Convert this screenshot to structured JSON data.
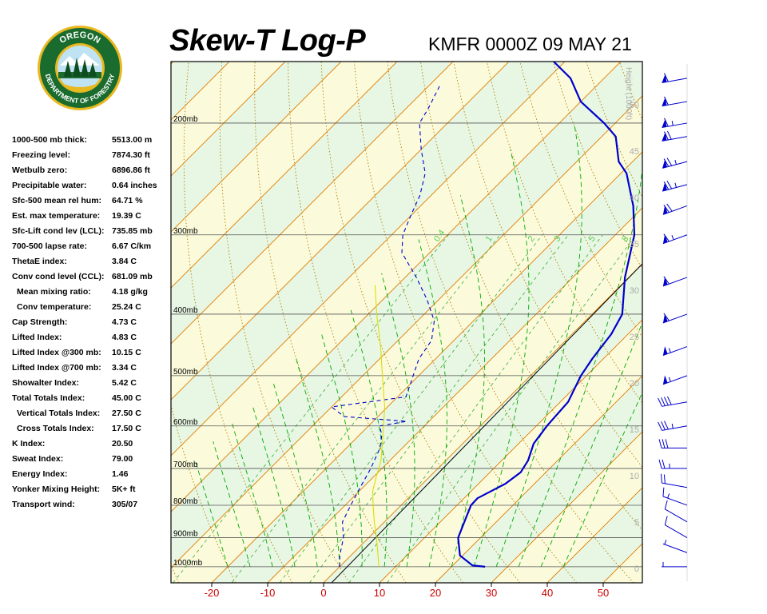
{
  "header": {
    "title": "Skew-T Log-P",
    "station": "KMFR 0000Z 09 MAY 21"
  },
  "logo": {
    "top_text": "OREGON",
    "bottom_text": "DEPARTMENT OF FORESTRY",
    "colors": {
      "ring": "#1a6b2e",
      "gold": "#e8b820",
      "sky": "#bfe3f2"
    }
  },
  "stats": [
    {
      "label": "1000-500 mb thick:",
      "value": "5513.00 m",
      "indent": false
    },
    {
      "label": "Freezing level:",
      "value": "7874.30 ft",
      "indent": false
    },
    {
      "label": "Wetbulb zero:",
      "value": "6896.86 ft",
      "indent": false
    },
    {
      "label": "Precipitable water:",
      "value": "0.64 inches",
      "indent": false
    },
    {
      "label": "Sfc-500 mean rel hum:",
      "value": "64.71 %",
      "indent": false
    },
    {
      "label": "Est. max temperature:",
      "value": "19.39 C",
      "indent": false
    },
    {
      "label": "Sfc-Lift cond lev (LCL):",
      "value": "735.85 mb",
      "indent": false
    },
    {
      "label": "700-500 lapse rate:",
      "value": "6.67 C/km",
      "indent": false
    },
    {
      "label": "ThetaE index:",
      "value": "3.84 C",
      "indent": false
    },
    {
      "label": "Conv cond level (CCL):",
      "value": "681.09 mb",
      "indent": false
    },
    {
      "label": "Mean mixing ratio:",
      "value": "4.18 g/kg",
      "indent": true
    },
    {
      "label": "Conv temperature:",
      "value": "25.24 C",
      "indent": true
    },
    {
      "label": "Cap Strength:",
      "value": "4.73 C",
      "indent": false
    },
    {
      "label": "Lifted Index:",
      "value": "4.83 C",
      "indent": false
    },
    {
      "label": "Lifted Index @300 mb:",
      "value": "10.15 C",
      "indent": false
    },
    {
      "label": "Lifted Index @700 mb:",
      "value": "3.34 C",
      "indent": false
    },
    {
      "label": "Showalter Index:",
      "value": "5.42 C",
      "indent": false
    },
    {
      "label": "Total Totals Index:",
      "value": "45.00 C",
      "indent": false
    },
    {
      "label": "Vertical Totals Index:",
      "value": "27.50 C",
      "indent": true
    },
    {
      "label": "Cross Totals Index:",
      "value": "17.50 C",
      "indent": true
    },
    {
      "label": "K Index:",
      "value": "20.50",
      "indent": false
    },
    {
      "label": "Sweat Index:",
      "value": "79.00",
      "indent": false
    },
    {
      "label": "Energy Index:",
      "value": "1.46",
      "indent": false
    },
    {
      "label": "Yonker Mixing Height:",
      "value": "5K+ ft",
      "indent": false
    },
    {
      "label": "Transport wind:",
      "value": "305/07",
      "indent": false
    }
  ],
  "chart_data": {
    "type": "line",
    "title": "Skew-T Log-P",
    "x_axis": {
      "label": "",
      "ticks": [
        "-20",
        "-10",
        "0",
        "10",
        "20",
        "30",
        "40",
        "50"
      ],
      "tick_values": [
        -20,
        -10,
        0,
        10,
        20,
        30,
        40,
        50
      ],
      "range": [
        -30,
        56
      ],
      "tick_color": "#cc0000"
    },
    "y_axis": {
      "scale": "log",
      "range": [
        1060,
        160
      ],
      "levels": [
        {
          "value": 1000,
          "label": "1000mb"
        },
        {
          "value": 900,
          "label": "900mb"
        },
        {
          "value": 800,
          "label": "800mb"
        },
        {
          "value": 700,
          "label": "700mb"
        },
        {
          "value": 600,
          "label": "600mb"
        },
        {
          "value": 500,
          "label": "500mb"
        },
        {
          "value": 400,
          "label": "400mb"
        },
        {
          "value": 300,
          "label": "300mb"
        },
        {
          "value": 200,
          "label": "200mb"
        }
      ]
    },
    "height_axis": {
      "label": "Height (1000ft)",
      "ticks": [
        "0",
        "5",
        "10",
        "15",
        "20",
        "25",
        "30",
        "35",
        "40",
        "45",
        "50"
      ],
      "tick_values": [
        0,
        5,
        10,
        15,
        20,
        25,
        30,
        35,
        40,
        45,
        50
      ],
      "range": [
        0,
        54
      ]
    },
    "mixing_ratio_labels": [
      {
        "label": "0.4",
        "value": 0.4
      },
      {
        "label": "1",
        "value": 1
      },
      {
        "label": "2",
        "value": 2
      },
      {
        "label": "3",
        "value": 3
      },
      {
        "label": "5",
        "value": 5
      },
      {
        "label": "8",
        "value": 8
      }
    ],
    "grid": true,
    "skew": "45-degree isotherms",
    "series": [
      {
        "role": "temperature",
        "color": "#0000cc",
        "style": "solid",
        "points": [
          [
            1000,
            26
          ],
          [
            995,
            23.5
          ],
          [
            960,
            19.5
          ],
          [
            900,
            16
          ],
          [
            850,
            14.3
          ],
          [
            800,
            12.5
          ],
          [
            780,
            12.4
          ],
          [
            740,
            14.8
          ],
          [
            710,
            15.5
          ],
          [
            680,
            14.7
          ],
          [
            640,
            12.7
          ],
          [
            600,
            11.9
          ],
          [
            550,
            11.4
          ],
          [
            500,
            9.0
          ],
          [
            470,
            8.0
          ],
          [
            430,
            7.0
          ],
          [
            400,
            5.4
          ],
          [
            350,
            -0.7
          ],
          [
            300,
            -6.6
          ],
          [
            270,
            -12
          ],
          [
            240,
            -19
          ],
          [
            230,
            -22.5
          ],
          [
            210,
            -27.5
          ],
          [
            200,
            -32
          ],
          [
            185,
            -40
          ],
          [
            170,
            -46
          ],
          [
            160,
            -52
          ]
        ]
      },
      {
        "role": "dewpoint",
        "color": "#0000cc",
        "style": "dashed",
        "points": [
          [
            1000,
            0
          ],
          [
            960,
            -2
          ],
          [
            900,
            -4.5
          ],
          [
            850,
            -7.5
          ],
          [
            800,
            -9
          ],
          [
            750,
            -10.5
          ],
          [
            700,
            -12
          ],
          [
            650,
            -14
          ],
          [
            620,
            -16
          ],
          [
            600,
            -18
          ],
          [
            590,
            -14
          ],
          [
            580,
            -26
          ],
          [
            560,
            -30
          ],
          [
            540,
            -18.5
          ],
          [
            500,
            -21
          ],
          [
            470,
            -23
          ],
          [
            440,
            -24
          ],
          [
            410,
            -27
          ],
          [
            380,
            -32
          ],
          [
            350,
            -38
          ],
          [
            320,
            -45
          ],
          [
            300,
            -48
          ],
          [
            280,
            -50
          ],
          [
            260,
            -52
          ],
          [
            240,
            -55
          ],
          [
            220,
            -60
          ],
          [
            200,
            -65
          ],
          [
            190,
            -66
          ],
          [
            175,
            -68
          ]
        ]
      },
      {
        "role": "parcel",
        "color": "#dddd00",
        "style": "solid",
        "points": [
          [
            1000,
            7
          ],
          [
            950,
            4.3
          ],
          [
            900,
            1.4
          ],
          [
            850,
            -1.8
          ],
          [
            800,
            -5
          ],
          [
            760,
            -7.6
          ],
          [
            720,
            -9.6
          ],
          [
            680,
            -11.6
          ],
          [
            620,
            -15.8
          ],
          [
            560,
            -20.5
          ],
          [
            500,
            -26.5
          ],
          [
            450,
            -32
          ],
          [
            400,
            -38.5
          ],
          [
            360,
            -44
          ]
        ]
      }
    ],
    "wind_profile": {
      "unit": "knots",
      "barbs": [
        {
          "p": 1000,
          "dir": 270,
          "spd": 5
        },
        {
          "p": 950,
          "dir": 290,
          "spd": 5
        },
        {
          "p": 900,
          "dir": 300,
          "spd": 10
        },
        {
          "p": 850,
          "dir": 300,
          "spd": 10
        },
        {
          "p": 800,
          "dir": 290,
          "spd": 15
        },
        {
          "p": 750,
          "dir": 280,
          "spd": 20
        },
        {
          "p": 700,
          "dir": 270,
          "spd": 25
        },
        {
          "p": 650,
          "dir": 270,
          "spd": 30
        },
        {
          "p": 600,
          "dir": 260,
          "spd": 35
        },
        {
          "p": 550,
          "dir": 260,
          "spd": 40
        },
        {
          "p": 500,
          "dir": 250,
          "spd": 55
        },
        {
          "p": 450,
          "dir": 250,
          "spd": 55
        },
        {
          "p": 400,
          "dir": 250,
          "spd": 60
        },
        {
          "p": 350,
          "dir": 250,
          "spd": 60
        },
        {
          "p": 300,
          "dir": 250,
          "spd": 65
        },
        {
          "p": 270,
          "dir": 250,
          "spd": 70
        },
        {
          "p": 250,
          "dir": 255,
          "spd": 75
        },
        {
          "p": 230,
          "dir": 255,
          "spd": 75
        },
        {
          "p": 210,
          "dir": 260,
          "spd": 70
        },
        {
          "p": 200,
          "dir": 260,
          "spd": 65
        },
        {
          "p": 185,
          "dir": 260,
          "spd": 60
        },
        {
          "p": 170,
          "dir": 260,
          "spd": 60
        }
      ]
    },
    "colors": {
      "isotherm": "#e07b00",
      "dry_adiabat": "#b07f00",
      "moist_adiabat": "#00aa00",
      "mixing_ratio": "#33aa33",
      "isobar": "#555555",
      "band_green": "#e8f7e4",
      "band_yellow": "#fbfbdc",
      "sounding": "#0000cc",
      "parcel": "#dddd00",
      "height_label": "#aaaaaa",
      "temp_label": "#cc0000"
    }
  }
}
